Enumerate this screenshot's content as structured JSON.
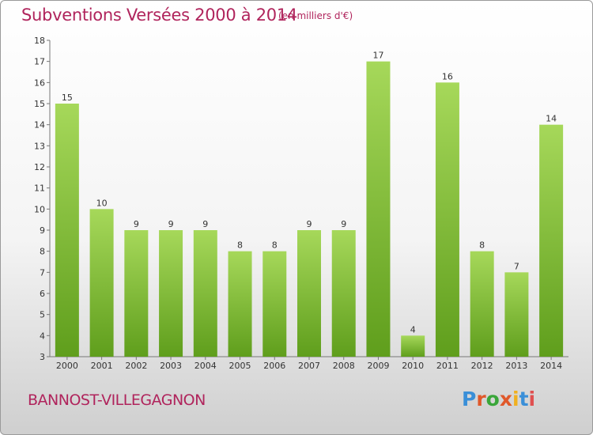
{
  "header": {
    "title": "Subventions Versées 2000 à 2014",
    "subtitle": "(en milliers d'€)"
  },
  "footer": {
    "city": "BANNOST-VILLEGAGNON",
    "logo_text": "Proxiti",
    "logo_colors": [
      "#3a8fd8",
      "#e0582a",
      "#3aa63a",
      "#e0582a",
      "#f0b020",
      "#3a8fd8",
      "#e05050"
    ]
  },
  "colors": {
    "bar_top": "#a6d85a",
    "bar_bottom": "#5f9e1c",
    "axis": "#777777",
    "grid": "#cccccc"
  },
  "chart_data": {
    "type": "bar",
    "title": "Subventions Versées 2000 à 2014",
    "xlabel": "",
    "ylabel": "",
    "categories": [
      "2000",
      "2001",
      "2002",
      "2003",
      "2004",
      "2005",
      "2006",
      "2007",
      "2008",
      "2009",
      "2010",
      "2011",
      "2012",
      "2013",
      "2014"
    ],
    "values": [
      15,
      10,
      9,
      9,
      9,
      8,
      8,
      9,
      9,
      17,
      4,
      16,
      8,
      7,
      14
    ],
    "ylim": [
      3,
      18
    ],
    "yticks": [
      3,
      4,
      5,
      6,
      7,
      8,
      9,
      10,
      11,
      12,
      13,
      14,
      15,
      16,
      17,
      18
    ],
    "grid": false,
    "data_labels": true
  }
}
